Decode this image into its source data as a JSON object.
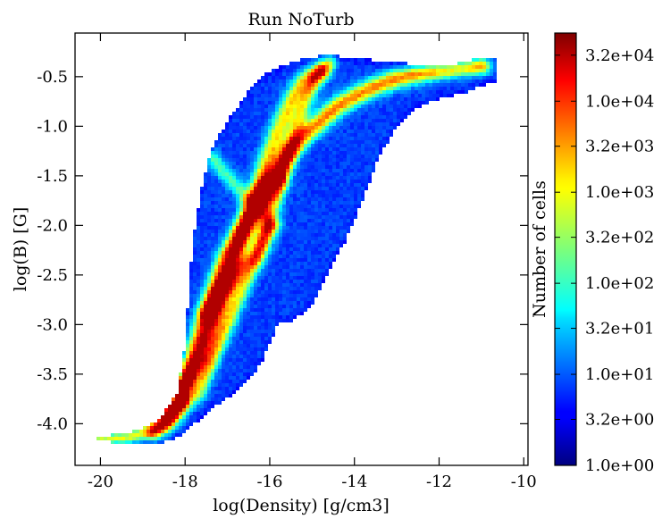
{
  "chart_data": {
    "type": "heatmap",
    "title": "Run NoTurb",
    "xlabel": "log(Density) [g/cm3]",
    "ylabel": "log(B) [G]",
    "xlim": [
      -20.6,
      -9.9
    ],
    "ylim": [
      -4.42,
      -0.06
    ],
    "x_ticks": [
      -20,
      -18,
      -16,
      -14,
      -12,
      -10
    ],
    "x_tick_labels": [
      "-20",
      "-18",
      "-16",
      "-14",
      "-12",
      "-10"
    ],
    "y_ticks": [
      -4.0,
      -3.5,
      -3.0,
      -2.5,
      -2.0,
      -1.5,
      -1.0,
      -0.5
    ],
    "y_tick_labels": [
      "-4.0",
      "-3.5",
      "-3.0",
      "-2.5",
      "-2.0",
      "-1.5",
      "-1.0",
      "-0.5"
    ],
    "grid": false,
    "colorbar": {
      "label": "Number of cells",
      "scale": "log",
      "range": [
        1.0,
        56000
      ],
      "colormap": "jet",
      "ticks": [
        1.0,
        3.2,
        10,
        32,
        100,
        320,
        1000,
        3200,
        10000,
        32000
      ],
      "tick_labels": [
        "1.0e+00",
        "3.2e+00",
        "1.0e+01",
        "3.2e+01",
        "1.0e+02",
        "3.2e+02",
        "1.0e+03",
        "3.2e+03",
        "1.0e+04",
        "3.2e+04"
      ]
    },
    "distribution": {
      "envelope": [
        {
          "x": -20.1,
          "lo": -4.17,
          "hi": -4.13
        },
        {
          "x": -19.5,
          "lo": -4.2,
          "hi": -4.1
        },
        {
          "x": -19.0,
          "lo": -4.22,
          "hi": -4.05
        },
        {
          "x": -18.6,
          "lo": -4.2,
          "hi": -3.95
        },
        {
          "x": -18.2,
          "lo": -4.15,
          "hi": -3.7
        },
        {
          "x": -18.0,
          "lo": -4.1,
          "hi": -3.2
        },
        {
          "x": -17.9,
          "lo": -4.05,
          "hi": -2.6
        },
        {
          "x": -17.8,
          "lo": -4.0,
          "hi": -2.1
        },
        {
          "x": -17.6,
          "lo": -3.95,
          "hi": -1.6
        },
        {
          "x": -17.4,
          "lo": -3.85,
          "hi": -1.25
        },
        {
          "x": -17.0,
          "lo": -3.75,
          "hi": -0.95
        },
        {
          "x": -16.6,
          "lo": -3.6,
          "hi": -0.7
        },
        {
          "x": -16.2,
          "lo": -3.4,
          "hi": -0.5
        },
        {
          "x": -15.8,
          "lo": -3.0,
          "hi": -0.4
        },
        {
          "x": -15.4,
          "lo": -2.95,
          "hi": -0.35
        },
        {
          "x": -15.0,
          "lo": -2.8,
          "hi": -0.3
        },
        {
          "x": -14.6,
          "lo": -2.45,
          "hi": -0.28
        },
        {
          "x": -14.2,
          "lo": -2.15,
          "hi": -0.3
        },
        {
          "x": -13.8,
          "lo": -1.75,
          "hi": -0.32
        },
        {
          "x": -13.4,
          "lo": -1.3,
          "hi": -0.34
        },
        {
          "x": -13.0,
          "lo": -1.0,
          "hi": -0.36
        },
        {
          "x": -12.6,
          "lo": -0.85,
          "hi": -0.37
        },
        {
          "x": -12.2,
          "lo": -0.75,
          "hi": -0.38
        },
        {
          "x": -11.8,
          "lo": -0.7,
          "hi": -0.38
        },
        {
          "x": -11.4,
          "lo": -0.67,
          "hi": -0.36
        },
        {
          "x": -11.0,
          "lo": -0.6,
          "hi": -0.3
        },
        {
          "x": -10.6,
          "lo": -0.55,
          "hi": -0.33
        }
      ],
      "ridges": [
        {
          "strength": 3.0,
          "width": 0.03,
          "points": [
            [
              -20.1,
              -4.15
            ],
            [
              -19.6,
              -4.14
            ],
            [
              -19.2,
              -4.1
            ],
            [
              -18.8,
              -4.02
            ],
            [
              -18.5,
              -3.93
            ],
            [
              -18.2,
              -3.8
            ],
            [
              -17.9,
              -3.45
            ],
            [
              -17.6,
              -3.05
            ],
            [
              -17.3,
              -2.65
            ],
            [
              -17.0,
              -2.3
            ],
            [
              -16.6,
              -2.0
            ],
            [
              -16.2,
              -1.75
            ],
            [
              -15.9,
              -1.5
            ],
            [
              -15.6,
              -1.3
            ],
            [
              -15.2,
              -1.1
            ],
            [
              -14.8,
              -0.95
            ],
            [
              -14.4,
              -0.8
            ],
            [
              -14.0,
              -0.7
            ],
            [
              -13.5,
              -0.6
            ],
            [
              -13.0,
              -0.52
            ],
            [
              -12.5,
              -0.47
            ],
            [
              -12.0,
              -0.43
            ],
            [
              -11.5,
              -0.4
            ],
            [
              -11.0,
              -0.38
            ]
          ]
        },
        {
          "strength": 2.4,
          "width": 0.03,
          "points": [
            [
              -18.5,
              -3.9
            ],
            [
              -18.0,
              -3.6
            ],
            [
              -17.6,
              -3.35
            ],
            [
              -17.3,
              -3.0
            ],
            [
              -17.0,
              -2.6
            ],
            [
              -16.7,
              -2.2
            ],
            [
              -16.4,
              -1.8
            ],
            [
              -16.1,
              -1.4
            ],
            [
              -15.8,
              -1.05
            ],
            [
              -15.5,
              -0.75
            ],
            [
              -15.2,
              -0.55
            ],
            [
              -14.8,
              -0.45
            ]
          ]
        },
        {
          "strength": 2.0,
          "width": 0.025,
          "points": [
            [
              -17.7,
              -3.7
            ],
            [
              -17.3,
              -3.3
            ],
            [
              -16.9,
              -2.9
            ],
            [
              -16.5,
              -2.5
            ],
            [
              -16.1,
              -2.1
            ],
            [
              -15.8,
              -1.65
            ],
            [
              -15.5,
              -1.2
            ],
            [
              -15.2,
              -0.8
            ],
            [
              -14.9,
              -0.5
            ],
            [
              -14.6,
              -0.35
            ]
          ]
        },
        {
          "strength": 1.7,
          "width": 0.03,
          "points": [
            [
              -17.5,
              -2.9
            ],
            [
              -17.2,
              -2.7
            ],
            [
              -16.9,
              -2.55
            ],
            [
              -16.6,
              -2.4
            ],
            [
              -16.3,
              -2.3
            ],
            [
              -16.1,
              -2.05
            ]
          ]
        },
        {
          "strength": 1.4,
          "width": 0.025,
          "points": [
            [
              -17.4,
              -1.3
            ],
            [
              -17.1,
              -1.45
            ],
            [
              -16.8,
              -1.6
            ],
            [
              -16.5,
              -1.75
            ],
            [
              -16.2,
              -1.85
            ],
            [
              -15.9,
              -2.0
            ]
          ]
        },
        {
          "strength": 1.8,
          "width": 0.03,
          "points": [
            [
              -16.3,
              -1.75
            ],
            [
              -16.0,
              -1.6
            ],
            [
              -15.8,
              -1.55
            ]
          ]
        },
        {
          "strength": 2.6,
          "width": 0.03,
          "points": [
            [
              -18.7,
              -4.08
            ],
            [
              -18.4,
              -3.98
            ],
            [
              -18.2,
              -3.85
            ],
            [
              -18.05,
              -3.78
            ]
          ]
        }
      ]
    }
  }
}
